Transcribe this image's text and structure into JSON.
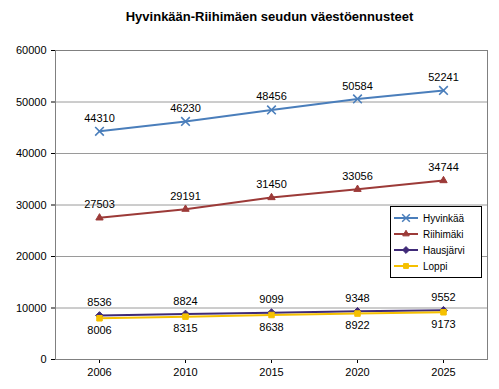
{
  "chart_data": {
    "type": "line",
    "title": "Hyvinkään-Riihimäen seudun väestöennusteet",
    "categories": [
      "2006",
      "2010",
      "2015",
      "2020",
      "2025"
    ],
    "series": [
      {
        "name": "Hyvinkää",
        "color": "#4a7ebb",
        "marker": "x",
        "values": [
          44310,
          46230,
          48456,
          50584,
          52241
        ]
      },
      {
        "name": "Riihimäki",
        "color": "#9c3a38",
        "marker": "triangle",
        "values": [
          27503,
          29191,
          31450,
          33056,
          34744
        ]
      },
      {
        "name": "Hausjärvi",
        "color": "#3f2a78",
        "marker": "diamond",
        "values": [
          8536,
          8824,
          9099,
          9348,
          9552
        ]
      },
      {
        "name": "Loppi",
        "color": "#f5c000",
        "marker": "square",
        "values": [
          8006,
          8315,
          8638,
          8922,
          9173
        ]
      }
    ],
    "ylim": [
      0,
      60000
    ],
    "yticks": [
      0,
      10000,
      20000,
      30000,
      40000,
      50000,
      60000
    ],
    "grid": true,
    "legend": "right",
    "data_labels": true
  }
}
